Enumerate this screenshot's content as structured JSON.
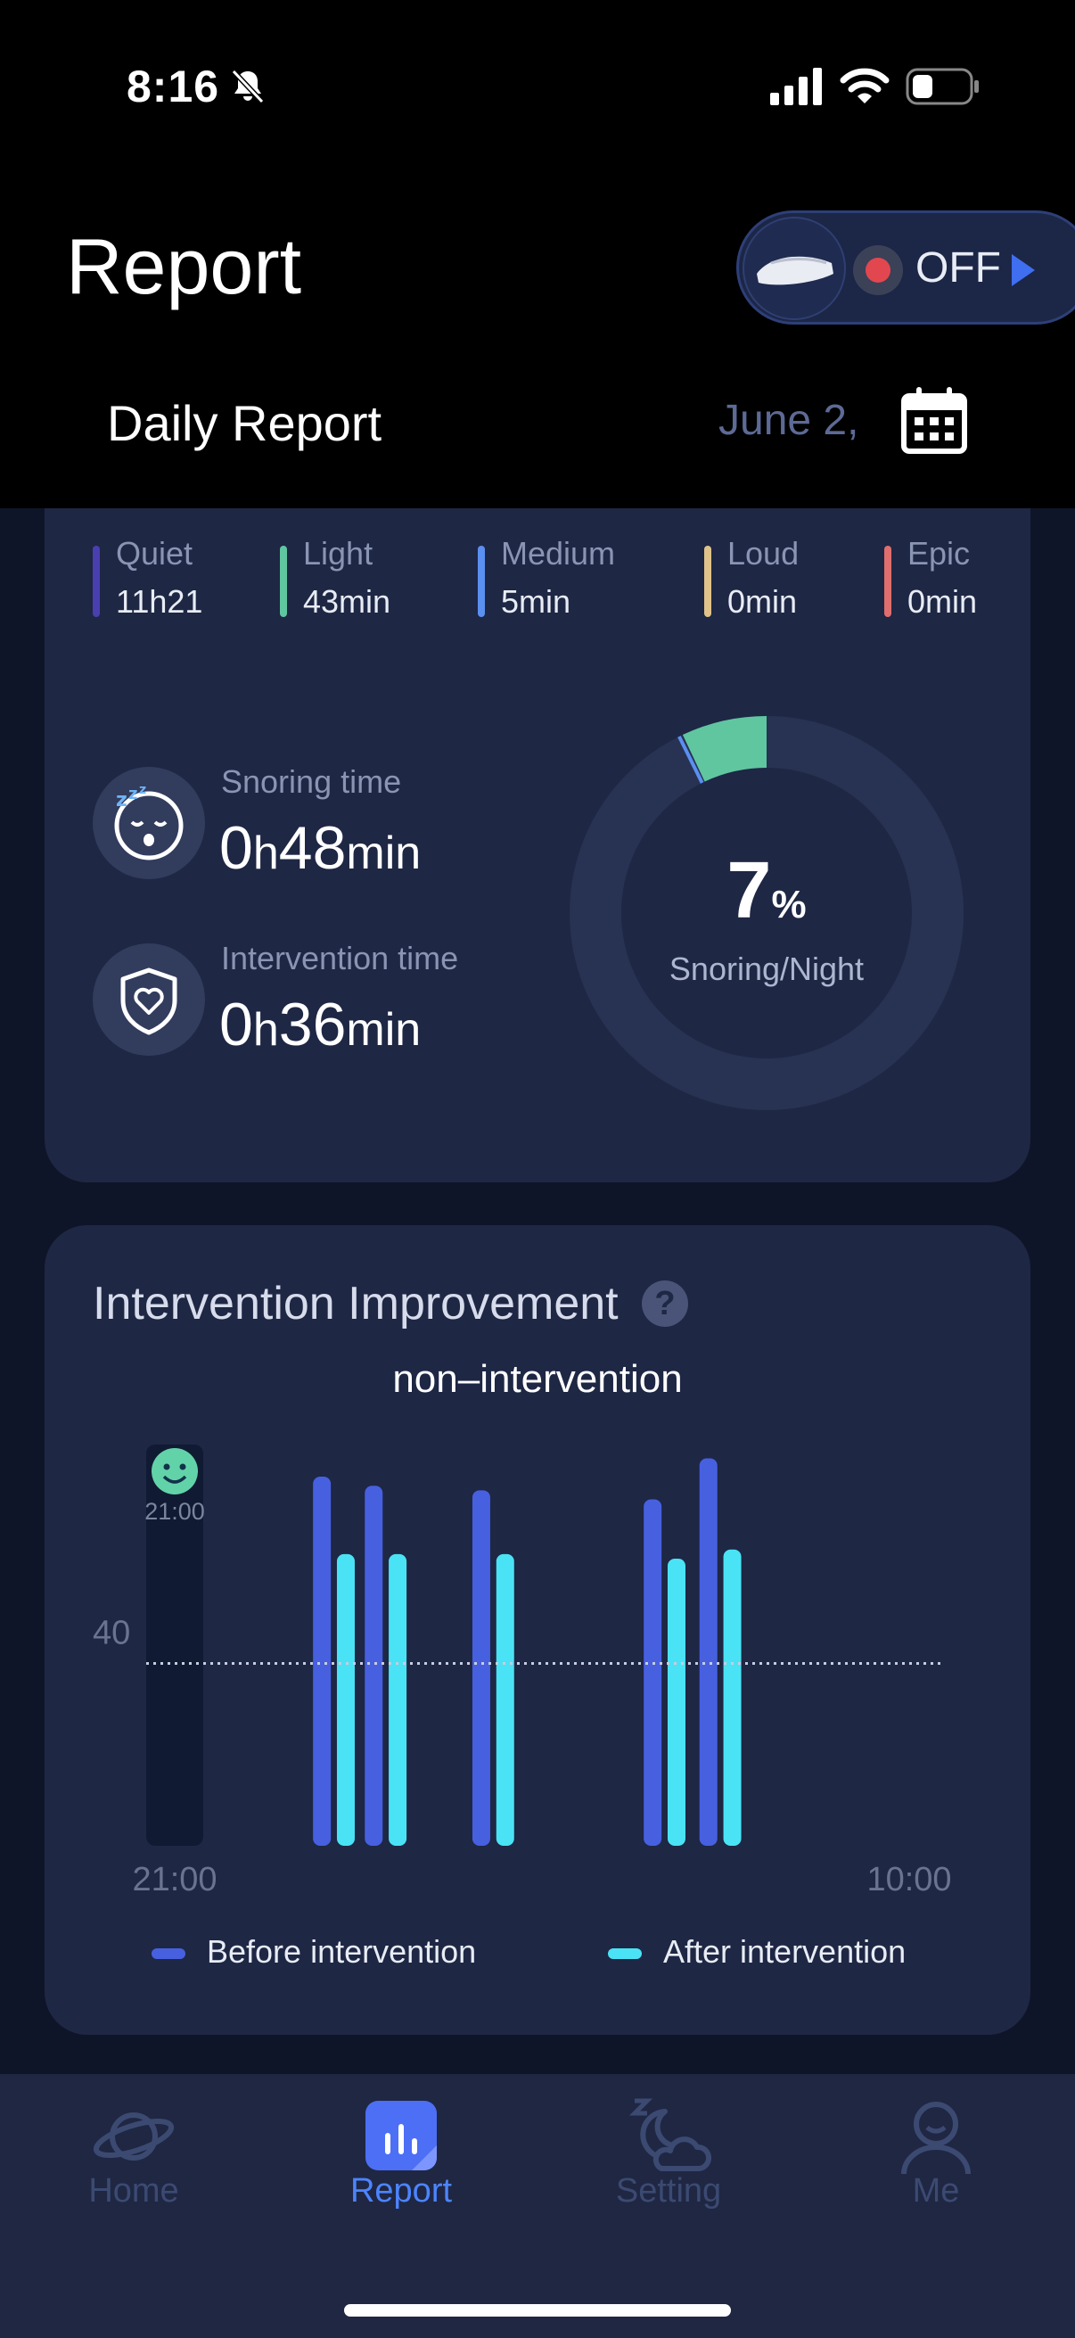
{
  "status_bar": {
    "time": "8:16"
  },
  "header": {
    "title": "Report",
    "device_toggle": {
      "state_label": "OFF"
    },
    "subtitle": "Daily Report",
    "date": "June 2,"
  },
  "snore_levels": [
    {
      "label": "Quiet",
      "value": "11h21",
      "color": "#4a3fb0"
    },
    {
      "label": "Light",
      "value": "43min",
      "color": "#5fc6a0"
    },
    {
      "label": "Medium",
      "value": "5min",
      "color": "#5b8ff0"
    },
    {
      "label": "Loud",
      "value": "0min",
      "color": "#e0c38a"
    },
    {
      "label": "Epic",
      "value": "0min",
      "color": "#e06e6e"
    }
  ],
  "metrics": {
    "snoring": {
      "label": "Snoring time",
      "hours": "0",
      "h_unit": "h",
      "minutes": "48",
      "m_unit": "min"
    },
    "intervention": {
      "label": "Intervention time",
      "hours": "0",
      "h_unit": "h",
      "minutes": "36",
      "m_unit": "min"
    }
  },
  "donut": {
    "percent": "7",
    "percent_unit": "%",
    "label": "Snoring/Night",
    "fraction": 0.07
  },
  "intervention_card": {
    "title": "Intervention Improvement",
    "subtitle": "non–intervention",
    "marker_time": "21:00",
    "legend_before": "Before intervention",
    "legend_after": "After intervention"
  },
  "chart_data": {
    "type": "bar",
    "xlabel": "",
    "ylabel": "",
    "x_start": "21:00",
    "x_end": "10:00",
    "threshold": 40,
    "threshold_label": "40",
    "ylim": [
      0,
      90
    ],
    "series": [
      {
        "name": "Before intervention",
        "color": "#4760e0",
        "values": [
          {
            "t": 0.225,
            "v": 81
          },
          {
            "t": 0.29,
            "v": 79
          },
          {
            "t": 0.425,
            "v": 78
          },
          {
            "t": 0.64,
            "v": 76
          },
          {
            "t": 0.71,
            "v": 85
          }
        ]
      },
      {
        "name": "After intervention",
        "color": "#4ae3f5",
        "values": [
          {
            "t": 0.255,
            "v": 64
          },
          {
            "t": 0.32,
            "v": 64
          },
          {
            "t": 0.455,
            "v": 64
          },
          {
            "t": 0.67,
            "v": 63
          },
          {
            "t": 0.74,
            "v": 65
          }
        ]
      }
    ]
  },
  "tabs": [
    {
      "label": "Home",
      "active": false
    },
    {
      "label": "Report",
      "active": true
    },
    {
      "label": "Setting",
      "active": false
    },
    {
      "label": "Me",
      "active": false
    }
  ]
}
